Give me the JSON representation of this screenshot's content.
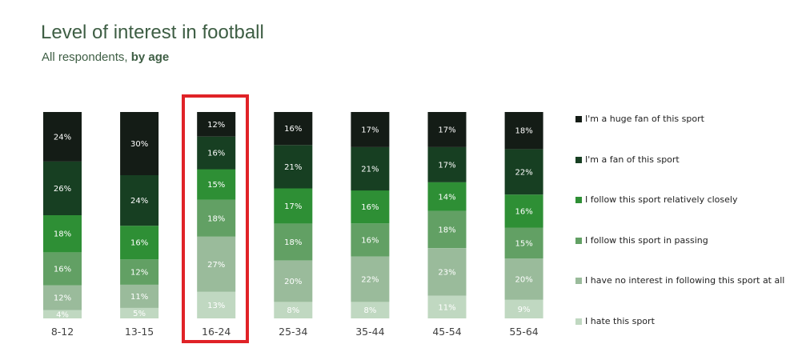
{
  "chart_data": {
    "type": "bar",
    "stacked": true,
    "title": "Level of interest in football",
    "subtitle_prefix": "All respondents, ",
    "subtitle_bold": "by age",
    "categories": [
      "8-12",
      "13-15",
      "16-24",
      "25-34",
      "35-44",
      "45-54",
      "55-64"
    ],
    "series": [
      {
        "name": "I hate this sport",
        "color": "#c0d8c1",
        "values": [
          4,
          5,
          13,
          8,
          8,
          11,
          9
        ]
      },
      {
        "name": "I have no interest in following this sport at all",
        "color": "#9abb9b",
        "values": [
          12,
          11,
          27,
          20,
          22,
          23,
          20
        ]
      },
      {
        "name": "I follow this sport in passing",
        "color": "#62a064",
        "values": [
          16,
          12,
          18,
          18,
          16,
          18,
          15
        ]
      },
      {
        "name": "I follow this sport relatively closely",
        "color": "#2e8f35",
        "values": [
          18,
          16,
          15,
          17,
          16,
          14,
          16
        ]
      },
      {
        "name": "I'm a fan of this sport",
        "color": "#173f22",
        "values": [
          26,
          24,
          16,
          21,
          21,
          17,
          22
        ]
      },
      {
        "name": "I'm a huge fan of this sport",
        "color": "#141c16",
        "values": [
          24,
          30,
          12,
          16,
          17,
          17,
          18
        ]
      }
    ],
    "value_suffix": "%",
    "ylim": [
      0,
      100
    ],
    "grid": false,
    "legend_position": "right",
    "highlighted_category": "16-24",
    "highlight_color": "#e02227"
  }
}
